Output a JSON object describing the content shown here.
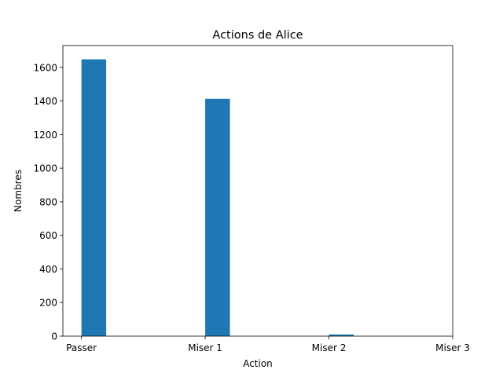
{
  "chart_data": {
    "type": "bar",
    "title": "Actions de Alice",
    "xlabel": "Action",
    "ylabel": "Nombres",
    "categories": [
      "Passer",
      "Miser 1",
      "Miser 2",
      "Miser 3"
    ],
    "x": [
      0,
      1,
      2,
      3
    ],
    "values": [
      1648,
      1413,
      10,
      0
    ],
    "bar_width": 0.2,
    "xlim": [
      -0.15,
      3.0
    ],
    "ylim": [
      0,
      1730
    ],
    "yticks": [
      0,
      200,
      400,
      600,
      800,
      1000,
      1200,
      1400,
      1600
    ],
    "bar_color": "#1f77b4",
    "grid": false,
    "legend": "none"
  }
}
